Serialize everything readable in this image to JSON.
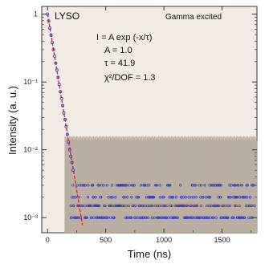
{
  "chart_data": {
    "type": "scatter",
    "title": "LYSO",
    "subtitle": "Gamma excited",
    "xlabel": "Time (ns)",
    "ylabel": "Intensity (a. u.)",
    "xlim": [
      -50,
      1800
    ],
    "ylim": [
      0.0006,
      1.3
    ],
    "yscale": "log",
    "grid": false,
    "x_ticks": [
      0,
      500,
      1000,
      1500
    ],
    "x_tick_labels": [
      "0",
      "500",
      "1000",
      "1500"
    ],
    "y_ticks": [
      1,
      0.1,
      0.01,
      0.001
    ],
    "y_tick_labels": [
      "1",
      "10⁻¹",
      "10⁻²",
      "10⁻³"
    ],
    "annotations": {
      "formula": "I = A exp (-x/τ)",
      "amplitude": "A = 1.0",
      "tau": "τ = 41.9",
      "chi2": "χ²/DOF = 1.3"
    },
    "fit": {
      "A": 1.0,
      "tau": 41.9,
      "x_range": [
        0,
        300
      ]
    },
    "error_band": {
      "x_start": 150,
      "x_end": 1800,
      "lower": 0.0006,
      "upper": 0.016
    },
    "series": [
      {
        "type": "scatter",
        "decay_points": [
          [
            0,
            1.0
          ],
          [
            10,
            0.79
          ],
          [
            20,
            0.62
          ],
          [
            30,
            0.49
          ],
          [
            40,
            0.38
          ],
          [
            50,
            0.3
          ],
          [
            60,
            0.24
          ],
          [
            70,
            0.19
          ],
          [
            80,
            0.15
          ],
          [
            90,
            0.117
          ],
          [
            100,
            0.092
          ],
          [
            110,
            0.072
          ],
          [
            120,
            0.057
          ],
          [
            130,
            0.045
          ],
          [
            140,
            0.035
          ],
          [
            150,
            0.028
          ],
          [
            160,
            0.022
          ],
          [
            170,
            0.017
          ],
          [
            180,
            0.013
          ],
          [
            190,
            0.01
          ],
          [
            200,
            0.008
          ],
          [
            210,
            0.0065
          ],
          [
            220,
            0.005
          ]
        ],
        "noise_levels": [
          0.001,
          0.0015,
          0.002,
          0.003
        ],
        "noise_x_range": [
          200,
          1780
        ]
      }
    ]
  }
}
